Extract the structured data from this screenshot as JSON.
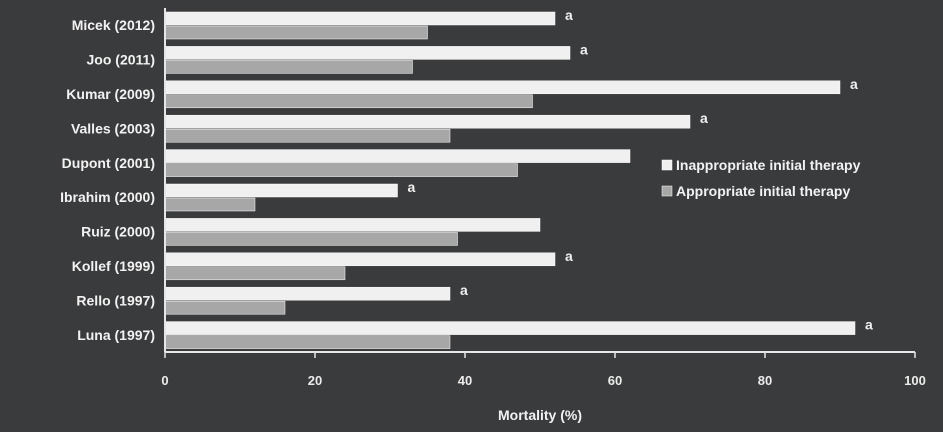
{
  "chart_data": {
    "type": "bar",
    "orientation": "horizontal",
    "categories": [
      "Micek (2012)",
      "Joo (2011)",
      "Kumar (2009)",
      "Valles (2003)",
      "Dupont (2001)",
      "Ibrahim (2000)",
      "Ruiz (2000)",
      "Kollef (1999)",
      "Rello (1997)",
      "Luna (1997)"
    ],
    "series": [
      {
        "name": "Inappropriate initial therapy",
        "color": "#f0f0f0",
        "values": [
          52,
          54,
          90,
          70,
          62,
          31,
          50,
          52,
          38,
          92
        ]
      },
      {
        "name": "Appropriate initial therapy",
        "color": "#a7a7a7",
        "values": [
          35,
          33,
          49,
          38,
          47,
          12,
          39,
          24,
          16,
          38
        ]
      }
    ],
    "annotations": [
      "a",
      "a",
      "a",
      "a",
      "",
      "a",
      "",
      "a",
      "a",
      "a"
    ],
    "xlabel": "Mortality (%)",
    "xlim": [
      0,
      100
    ],
    "xticks": [
      "0",
      "20",
      "40",
      "60",
      "80",
      "100"
    ],
    "legend_position": "right",
    "grid": false
  }
}
